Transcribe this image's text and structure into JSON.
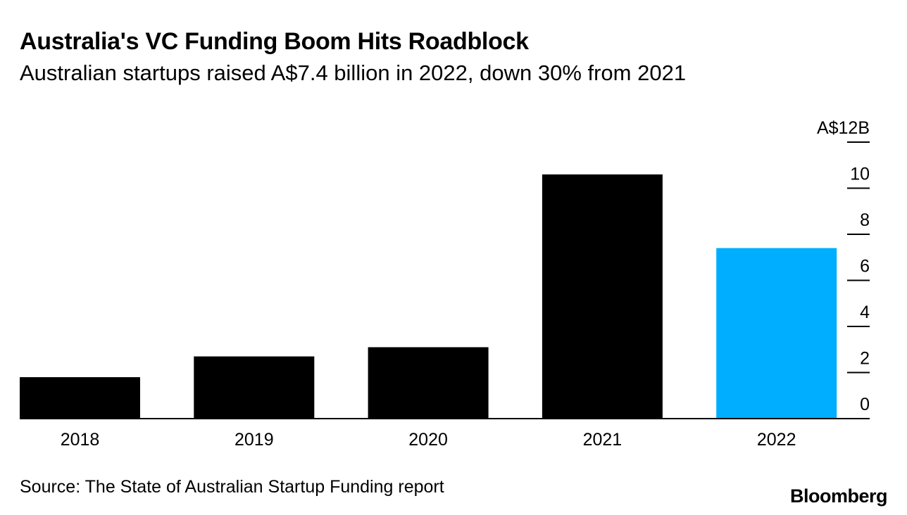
{
  "header": {
    "title": "Australia's VC Funding Boom Hits Roadblock",
    "subtitle": "Australian startups raised A$7.4 billion in 2022, down 30% from 2021"
  },
  "footer": {
    "source": "Source: The State of Australian Startup Funding report",
    "brand": "Bloomberg"
  },
  "colors": {
    "bar_default": "#000000",
    "bar_highlight": "#00AEFF",
    "axis": "#000000"
  },
  "chart_data": {
    "type": "bar",
    "title": "Australia's VC Funding Boom Hits Roadblock",
    "subtitle": "Australian startups raised A$7.4 billion in 2022, down 30% from 2021",
    "categories": [
      "2018",
      "2019",
      "2020",
      "2021",
      "2022"
    ],
    "values": [
      1.8,
      2.7,
      3.1,
      10.6,
      7.4
    ],
    "highlight_index": 4,
    "xlabel": "",
    "ylabel": "",
    "ylim": [
      0,
      12
    ],
    "y_ticks": [
      0,
      2,
      4,
      6,
      8,
      10,
      12
    ],
    "y_tick_labels": [
      "0",
      "2",
      "4",
      "6",
      "8",
      "10",
      "A$12B"
    ],
    "y_axis_side": "right",
    "grid": false,
    "legend": "none"
  }
}
